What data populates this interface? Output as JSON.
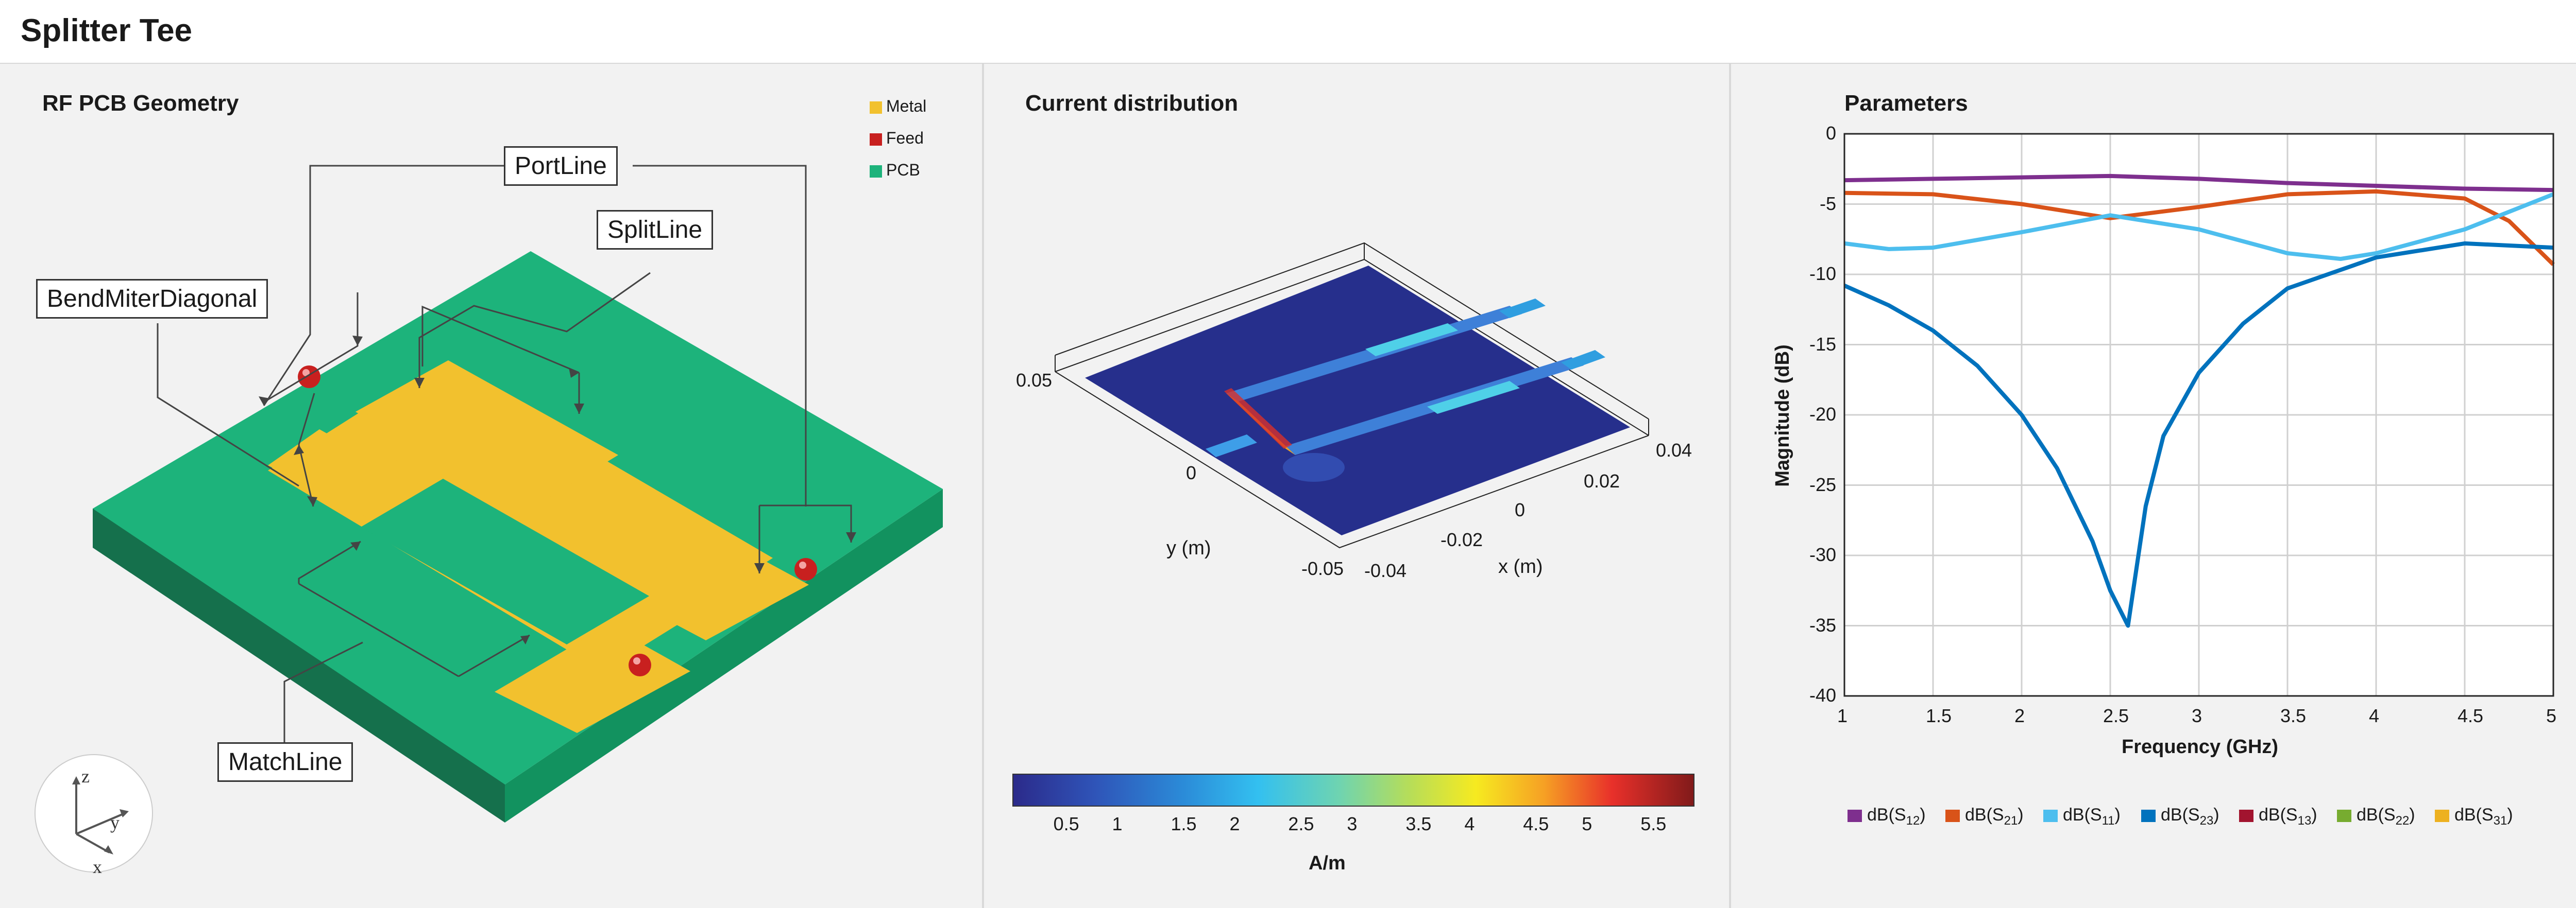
{
  "app": {
    "title": "Splitter Tee"
  },
  "geometry_panel": {
    "title": "RF PCB Geometry",
    "legend": [
      {
        "label": "Metal",
        "color": "#f2c12e"
      },
      {
        "label": "Feed",
        "color": "#c8201f"
      },
      {
        "label": "PCB",
        "color": "#1db37b"
      }
    ],
    "callouts": {
      "port_line": "PortLine",
      "split_line": "SplitLine",
      "bend_miter": "BendMiterDiagonal",
      "match_line": "MatchLine"
    },
    "axes_triad": {
      "x": "x",
      "y": "y",
      "z": "z"
    }
  },
  "current_panel": {
    "title": "Current distribution",
    "xlabel": "x (m)",
    "ylabel": "y (m)",
    "x_ticks": [
      "-0.04",
      "-0.02",
      "0",
      "0.02",
      "0.04"
    ],
    "y_ticks": [
      "-0.05",
      "0",
      "0.05"
    ],
    "colorbar": {
      "ticks": [
        "0.5",
        "1",
        "1.5",
        "2",
        "2.5",
        "3",
        "3.5",
        "4",
        "4.5",
        "5",
        "5.5"
      ],
      "min": 0.05,
      "max": 5.85,
      "label": "A/m"
    }
  },
  "params_panel": {
    "title": "Parameters"
  },
  "chart_data": {
    "type": "line",
    "title": "Parameters",
    "xlabel": "Frequency (GHz)",
    "ylabel": "Magnitude (dB)",
    "xlim": [
      1,
      5
    ],
    "ylim": [
      -40,
      0
    ],
    "x_ticks": [
      1,
      1.5,
      2,
      2.5,
      3,
      3.5,
      4,
      4.5,
      5
    ],
    "y_ticks": [
      0,
      -5,
      -10,
      -15,
      -20,
      -25,
      -30,
      -35,
      -40
    ],
    "grid": true,
    "legend_position": "bottom",
    "series": [
      {
        "name": "dB(S12)",
        "base": "dB(S",
        "sub": "12",
        "color": "#7e2f8e",
        "x": [
          1,
          1.5,
          2,
          2.5,
          3,
          3.5,
          4,
          4.5,
          5
        ],
        "y": [
          -3.3,
          -3.2,
          -3.1,
          -3.0,
          -3.2,
          -3.5,
          -3.7,
          -3.9,
          -4.0
        ]
      },
      {
        "name": "dB(S21)",
        "base": "dB(S",
        "sub": "21",
        "color": "#d95319",
        "x": [
          1,
          1.5,
          2,
          2.5,
          3,
          3.5,
          4,
          4.5,
          4.75,
          5
        ],
        "y": [
          -4.2,
          -4.3,
          -5.0,
          -6.0,
          -5.2,
          -4.3,
          -4.1,
          -4.6,
          -6.2,
          -9.3
        ]
      },
      {
        "name": "dB(S11)",
        "base": "dB(S",
        "sub": "11",
        "color": "#4dbeee",
        "x": [
          1,
          1.25,
          1.5,
          2,
          2.5,
          3,
          3.5,
          3.8,
          4,
          4.5,
          5
        ],
        "y": [
          -7.8,
          -8.2,
          -8.1,
          -7.0,
          -5.8,
          -6.8,
          -8.5,
          -8.9,
          -8.5,
          -6.8,
          -4.3
        ]
      },
      {
        "name": "dB(S23)",
        "base": "dB(S",
        "sub": "23",
        "color": "#0072bd",
        "x": [
          1,
          1.25,
          1.5,
          1.75,
          2,
          2.2,
          2.4,
          2.5,
          2.6,
          2.7,
          2.8,
          3,
          3.25,
          3.5,
          4,
          4.5,
          5
        ],
        "y": [
          -10.8,
          -12.2,
          -14.0,
          -16.5,
          -20.0,
          -23.8,
          -29.0,
          -32.5,
          -35.0,
          -26.5,
          -21.5,
          -17.0,
          -13.5,
          -11.0,
          -8.8,
          -7.8,
          -8.1
        ]
      },
      {
        "name": "dB(S13)",
        "base": "dB(S",
        "sub": "13",
        "color": "#a2142f",
        "x": [],
        "y": []
      },
      {
        "name": "dB(S22)",
        "base": "dB(S",
        "sub": "22",
        "color": "#77ac30",
        "x": [],
        "y": []
      },
      {
        "name": "dB(S31)",
        "base": "dB(S",
        "sub": "31",
        "color": "#edb120",
        "x": [],
        "y": []
      }
    ]
  }
}
